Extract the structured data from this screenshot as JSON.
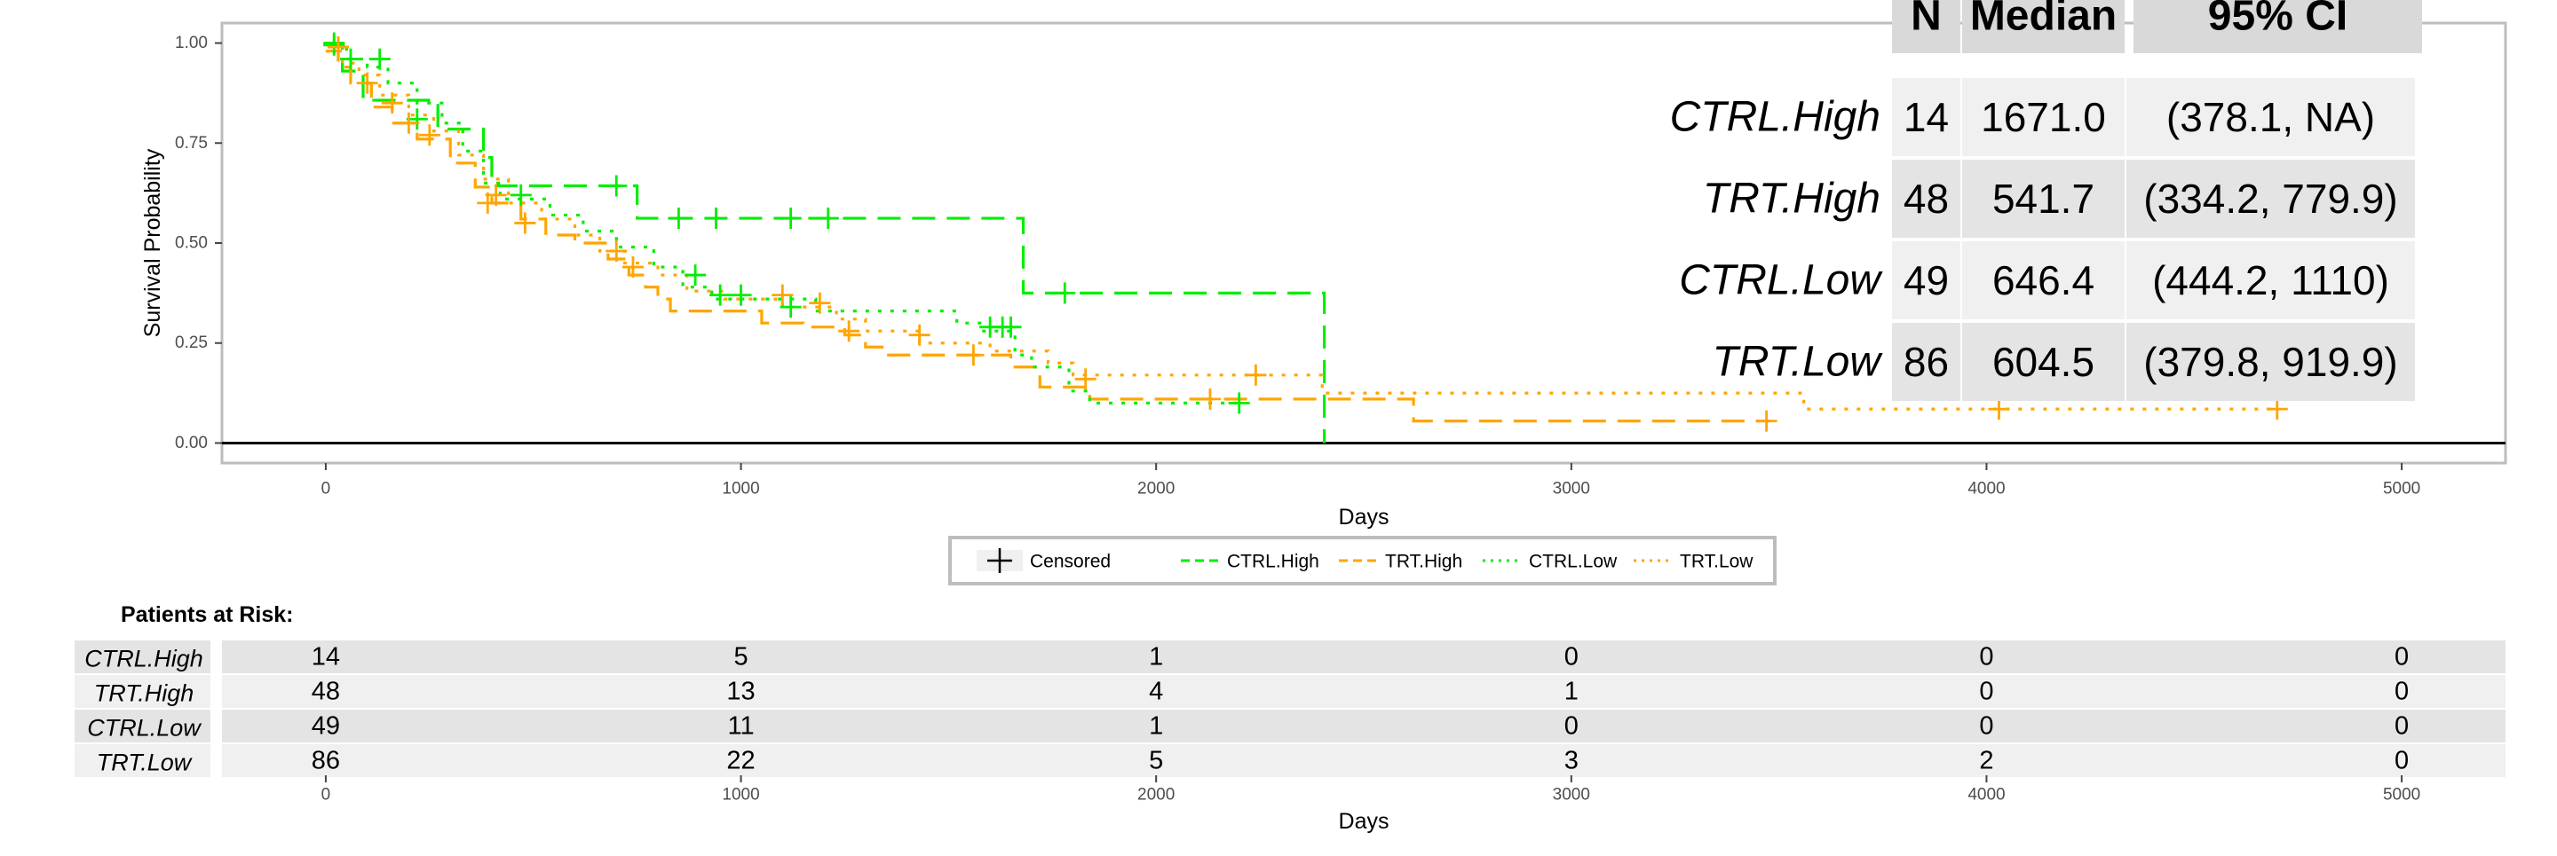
{
  "chart_data": [
    {
      "type": "line",
      "xlabel": "Days",
      "ylabel": "Survival Probability",
      "xlim": [
        -250,
        5250
      ],
      "ylim": [
        -0.05,
        1.05
      ],
      "x_ticks": [
        0,
        1000,
        2000,
        3000,
        4000,
        5000
      ],
      "x_tick_labels": [
        "0",
        "1000",
        "2000",
        "3000",
        "4000",
        "5000"
      ],
      "y_ticks": [
        0,
        0.25,
        0.5,
        0.75,
        1.0
      ],
      "y_tick_labels": [
        "0.00",
        "0.25",
        "0.50",
        "0.75",
        "1.00"
      ],
      "grid": false,
      "legend_position": "bottom",
      "legend": [
        {
          "key": "censored",
          "label": "Censored"
        },
        {
          "key": "ctrl_high",
          "label": "CTRL.High"
        },
        {
          "key": "trt_high",
          "label": "TRT.High"
        },
        {
          "key": "ctrl_low",
          "label": "CTRL.Low"
        },
        {
          "key": "trt_low",
          "label": "TRT.Low"
        }
      ],
      "series": [
        {
          "key": "ctrl_high",
          "name": "CTRL.High",
          "color": "#00ee00",
          "line_style": "dashed",
          "steps": [
            [
              0,
              1.0
            ],
            [
              40,
              0.93
            ],
            [
              90,
              0.857
            ],
            [
              190,
              0.857
            ],
            [
              270,
              0.785
            ],
            [
              380,
              0.714
            ],
            [
              400,
              0.643
            ],
            [
              740,
              0.643
            ],
            [
              750,
              0.562
            ],
            [
              1671,
              0.562
            ],
            [
              1680,
              0.375
            ],
            [
              2400,
              0.375
            ],
            [
              2405,
              0.0
            ]
          ],
          "censored": [
            [
              20,
              1.0
            ],
            [
              30,
              0.99
            ],
            [
              130,
              0.96
            ],
            [
              220,
              0.81
            ],
            [
              470,
              0.62
            ],
            [
              700,
              0.643
            ],
            [
              850,
              0.562
            ],
            [
              940,
              0.562
            ],
            [
              1120,
              0.562
            ],
            [
              1210,
              0.562
            ],
            [
              1780,
              0.375
            ]
          ]
        },
        {
          "key": "trt_high",
          "name": "TRT.High",
          "color": "#ffa500",
          "line_style": "dashed",
          "steps": [
            [
              0,
              0.98
            ],
            [
              30,
              0.94
            ],
            [
              60,
              0.9
            ],
            [
              110,
              0.84
            ],
            [
              160,
              0.8
            ],
            [
              220,
              0.76
            ],
            [
              300,
              0.7
            ],
            [
              360,
              0.64
            ],
            [
              400,
              0.6
            ],
            [
              470,
              0.56
            ],
            [
              530,
              0.52
            ],
            [
              600,
              0.5
            ],
            [
              680,
              0.46
            ],
            [
              730,
              0.42
            ],
            [
              770,
              0.39
            ],
            [
              800,
              0.36
            ],
            [
              830,
              0.33
            ],
            [
              1050,
              0.3
            ],
            [
              1150,
              0.29
            ],
            [
              1250,
              0.27
            ],
            [
              1300,
              0.24
            ],
            [
              1340,
              0.22
            ],
            [
              1650,
              0.19
            ],
            [
              1720,
              0.14
            ],
            [
              1840,
              0.11
            ],
            [
              2380,
              0.11
            ],
            [
              2620,
              0.055
            ],
            [
              3480,
              0.055
            ]
          ],
          "censored": [
            [
              100,
              0.9
            ],
            [
              160,
              0.85
            ],
            [
              200,
              0.8
            ],
            [
              390,
              0.6
            ],
            [
              480,
              0.55
            ],
            [
              700,
              0.48
            ],
            [
              740,
              0.44
            ],
            [
              1100,
              0.37
            ],
            [
              1190,
              0.35
            ],
            [
              1560,
              0.22
            ],
            [
              1830,
              0.16
            ],
            [
              2130,
              0.11
            ],
            [
              3470,
              0.055
            ]
          ]
        },
        {
          "key": "ctrl_low",
          "name": "CTRL.Low",
          "color": "#00ee00",
          "line_style": "dotted",
          "steps": [
            [
              0,
              1.0
            ],
            [
              50,
              0.96
            ],
            [
              100,
              0.94
            ],
            [
              150,
              0.9
            ],
            [
              220,
              0.85
            ],
            [
              280,
              0.8
            ],
            [
              330,
              0.73
            ],
            [
              380,
              0.65
            ],
            [
              420,
              0.61
            ],
            [
              540,
              0.57
            ],
            [
              620,
              0.53
            ],
            [
              700,
              0.49
            ],
            [
              790,
              0.44
            ],
            [
              860,
              0.39
            ],
            [
              930,
              0.36
            ],
            [
              1180,
              0.33
            ],
            [
              1520,
              0.3
            ],
            [
              1580,
              0.28
            ],
            [
              1660,
              0.22
            ],
            [
              1700,
              0.19
            ],
            [
              1790,
              0.13
            ],
            [
              1840,
              0.1
            ],
            [
              2200,
              0.1
            ]
          ],
          "censored": [
            [
              20,
              0.995
            ],
            [
              60,
              0.96
            ],
            [
              890,
              0.42
            ],
            [
              950,
              0.37
            ],
            [
              1000,
              0.37
            ],
            [
              1120,
              0.34
            ],
            [
              1600,
              0.29
            ],
            [
              1630,
              0.29
            ],
            [
              1650,
              0.29
            ],
            [
              2200,
              0.1
            ]
          ]
        },
        {
          "key": "trt_low",
          "name": "TRT.Low",
          "color": "#ffa500",
          "line_style": "dotted",
          "steps": [
            [
              0,
              0.98
            ],
            [
              40,
              0.95
            ],
            [
              80,
              0.92
            ],
            [
              130,
              0.87
            ],
            [
              200,
              0.82
            ],
            [
              260,
              0.78
            ],
            [
              320,
              0.72
            ],
            [
              380,
              0.66
            ],
            [
              440,
              0.6
            ],
            [
              520,
              0.56
            ],
            [
              600,
              0.52
            ],
            [
              660,
              0.48
            ],
            [
              720,
              0.45
            ],
            [
              800,
              0.42
            ],
            [
              870,
              0.38
            ],
            [
              960,
              0.36
            ],
            [
              1100,
              0.34
            ],
            [
              1230,
              0.31
            ],
            [
              1300,
              0.28
            ],
            [
              1430,
              0.25
            ],
            [
              1600,
              0.23
            ],
            [
              1740,
              0.2
            ],
            [
              1800,
              0.17
            ],
            [
              2380,
              0.17
            ],
            [
              2400,
              0.125
            ],
            [
              3540,
              0.125
            ],
            [
              3560,
              0.085
            ],
            [
              4700,
              0.085
            ]
          ],
          "censored": [
            [
              30,
              0.99
            ],
            [
              250,
              0.77
            ],
            [
              410,
              0.62
            ],
            [
              1260,
              0.28
            ],
            [
              1430,
              0.27
            ],
            [
              2240,
              0.17
            ],
            [
              4030,
              0.085
            ],
            [
              4700,
              0.085
            ]
          ]
        }
      ],
      "summary_table": {
        "headers": [
          "N",
          "Median",
          "95% CI"
        ],
        "rows": [
          {
            "group": "CTRL.High",
            "n": "14",
            "median": "1671.0",
            "ci": "(378.1, NA)"
          },
          {
            "group": "TRT.High",
            "n": "48",
            "median": "541.7",
            "ci": "(334.2, 779.9)"
          },
          {
            "group": "CTRL.Low",
            "n": "49",
            "median": "646.4",
            "ci": "(444.2, 1110)"
          },
          {
            "group": "TRT.Low",
            "n": "86",
            "median": "604.5",
            "ci": "(379.8, 919.9)"
          }
        ]
      }
    },
    {
      "type": "table",
      "title": "Patients at Risk:",
      "xlabel": "Days",
      "x_ticks": [
        0,
        1000,
        2000,
        3000,
        4000,
        5000
      ],
      "x_tick_labels": [
        "0",
        "1000",
        "2000",
        "3000",
        "4000",
        "5000"
      ],
      "rows": [
        {
          "group": "CTRL.High",
          "counts": [
            14,
            5,
            1,
            0,
            0,
            0
          ]
        },
        {
          "group": "TRT.High",
          "counts": [
            48,
            13,
            4,
            1,
            0,
            0
          ]
        },
        {
          "group": "CTRL.Low",
          "counts": [
            49,
            11,
            1,
            0,
            0,
            0
          ]
        },
        {
          "group": "TRT.Low",
          "counts": [
            86,
            22,
            5,
            3,
            2,
            0
          ]
        }
      ]
    }
  ]
}
